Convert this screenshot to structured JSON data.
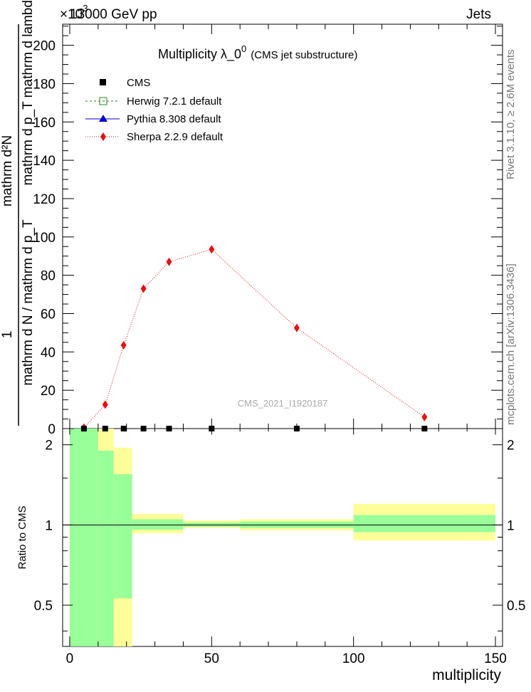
{
  "header": {
    "left": "13000 GeV pp",
    "right": "Jets",
    "exponent_prefix": "×10",
    "exponent": "-3"
  },
  "title": {
    "main": "Multiplicity  λ_0",
    "superscript": "0",
    "sub": "(CMS jet substructure)"
  },
  "watermark": "CMS_2021_I1920187",
  "side_labels": {
    "top": "Rivet 3.1.10, ≥ 2.6M events",
    "bottom": "mcplots.cern.ch [arXiv:1306.3436]"
  },
  "colors": {
    "data_bands_inner": "#99ff99",
    "data_bands_outer": "#ffff99",
    "sherpa": "#e6110f",
    "herwig": "#2a8a1f",
    "pythia": "#0000cc"
  },
  "chart_data": [
    {
      "type": "line",
      "panel": "main",
      "ylabel_numerator": "mathrm d²N",
      "ylabel_denominator": "mathrm d p_T mathrm d lambda",
      "ylabel_prefix": "1",
      "ylabel_prefix_den": "mathrm d N / mathrm d p_T",
      "xlim": [
        -2.5,
        152.5
      ],
      "ylim": [
        0,
        211
      ],
      "y_ticks": [
        0,
        20,
        40,
        60,
        80,
        100,
        120,
        140,
        160,
        180,
        200
      ],
      "y_tick_labels": [
        "0",
        "20",
        "40",
        "60",
        "80",
        "100",
        "120",
        "140",
        "160",
        "180",
        "200"
      ],
      "legend": [
        {
          "name": "CMS",
          "marker": "square-filled"
        },
        {
          "name": "Herwig 7.2.1 default",
          "marker": "square-open",
          "line": "dashed"
        },
        {
          "name": "Pythia 8.308 default",
          "marker": "triangle",
          "line": "solid"
        },
        {
          "name": "Sherpa 2.2.9 default",
          "marker": "diamond",
          "line": "dotted"
        }
      ],
      "series": [
        {
          "name": "CMS",
          "x": [
            5,
            12.5,
            19,
            26,
            35,
            50,
            80,
            125
          ],
          "y": [
            0,
            0,
            0,
            0,
            0,
            0,
            0,
            0
          ]
        },
        {
          "name": "Sherpa 2.2.9 default",
          "x": [
            5,
            12.5,
            19,
            26,
            35,
            50,
            80,
            125
          ],
          "y": [
            0.5,
            12.5,
            43.5,
            73,
            87,
            93.5,
            52.5,
            6
          ]
        }
      ]
    },
    {
      "type": "area",
      "panel": "ratio",
      "ylabel": "Ratio to CMS",
      "xlabel": "multiplicity",
      "xlim": [
        -2.5,
        152.5
      ],
      "ylim": [
        0.35,
        2.3
      ],
      "y_ticks": [
        0.5,
        1,
        2
      ],
      "y_tick_labels": [
        "0.5",
        "1",
        "2"
      ],
      "x_ticks": [
        0,
        50,
        100,
        150
      ],
      "x_tick_labels": [
        "0",
        "50",
        "100",
        "150"
      ],
      "bins": [
        {
          "x0": 0,
          "x1": 10,
          "inner": [
            0.35,
            2.3
          ],
          "outer": [
            0.35,
            2.3
          ]
        },
        {
          "x0": 10,
          "x1": 15.5,
          "inner": [
            0.35,
            1.9
          ],
          "outer": [
            0.35,
            2.3
          ]
        },
        {
          "x0": 15.5,
          "x1": 22,
          "inner": [
            0.53,
            1.55
          ],
          "outer": [
            0.35,
            1.95
          ]
        },
        {
          "x0": 22,
          "x1": 40,
          "inner": [
            0.96,
            1.05
          ],
          "outer": [
            0.93,
            1.1
          ]
        },
        {
          "x0": 40,
          "x1": 60,
          "inner": [
            0.985,
            1.02
          ],
          "outer": [
            0.975,
            1.04
          ]
        },
        {
          "x0": 60,
          "x1": 100,
          "inner": [
            0.975,
            1.03
          ],
          "outer": [
            0.955,
            1.05
          ]
        },
        {
          "x0": 100,
          "x1": 150,
          "inner": [
            0.94,
            1.09
          ],
          "outer": [
            0.875,
            1.2
          ]
        }
      ]
    }
  ]
}
